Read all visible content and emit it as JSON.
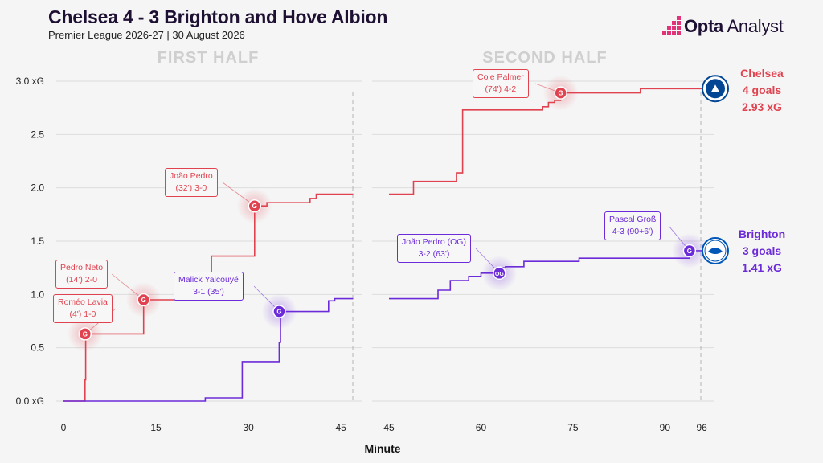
{
  "header": {
    "title": "Chelsea 4 - 3 Brighton and Hove Albion",
    "subtitle": "Premier League 2026-27 | 30 August 2026",
    "brand_bold": "Opta",
    "brand_rest": " Analyst"
  },
  "chart_data": {
    "type": "line",
    "xlabel": "Minute",
    "ylim": [
      0,
      3.0
    ],
    "y_ticks": [
      "0.0 xG",
      "0.5",
      "1.0",
      "1.5",
      "2.0",
      "2.5",
      "3.0 xG"
    ],
    "grid": true,
    "panels": [
      {
        "label": "FIRST HALF",
        "x_ticks": [
          "0",
          "15",
          "30",
          "45"
        ],
        "xlim": [
          0,
          47
        ]
      },
      {
        "label": "SECOND HALF",
        "x_ticks": [
          "45",
          "60",
          "75",
          "90",
          "96"
        ],
        "xlim": [
          45,
          96
        ]
      }
    ],
    "series": [
      {
        "name": "Chelsea",
        "color": "#e0434f",
        "summary": [
          "Chelsea",
          "4 goals",
          "2.93 xG"
        ],
        "first_half": [
          [
            0,
            0
          ],
          [
            3.5,
            0
          ],
          [
            3.5,
            0.2
          ],
          [
            3.6,
            0.2
          ],
          [
            3.6,
            0.63
          ],
          [
            13,
            0.63
          ],
          [
            13,
            0.95
          ],
          [
            24,
            0.95
          ],
          [
            24,
            1.36
          ],
          [
            31,
            1.36
          ],
          [
            31,
            1.83
          ],
          [
            33,
            1.83
          ],
          [
            33,
            1.86
          ],
          [
            40,
            1.86
          ],
          [
            40,
            1.9
          ],
          [
            41,
            1.9
          ],
          [
            41,
            1.94
          ],
          [
            47,
            1.94
          ]
        ],
        "second_half": [
          [
            45,
            1.94
          ],
          [
            49,
            1.94
          ],
          [
            49,
            2.06
          ],
          [
            56,
            2.06
          ],
          [
            56,
            2.14
          ],
          [
            57,
            2.14
          ],
          [
            57,
            2.73
          ],
          [
            70,
            2.73
          ],
          [
            70,
            2.76
          ],
          [
            71,
            2.76
          ],
          [
            71,
            2.8
          ],
          [
            72,
            2.8
          ],
          [
            72,
            2.82
          ],
          [
            73,
            2.82
          ],
          [
            73,
            2.89
          ],
          [
            86,
            2.89
          ],
          [
            86,
            2.93
          ],
          [
            96,
            2.93
          ]
        ]
      },
      {
        "name": "Brighton",
        "color": "#6c2bd9",
        "summary": [
          "Brighton",
          "3 goals",
          "1.41 xG"
        ],
        "first_half": [
          [
            0,
            0
          ],
          [
            23,
            0
          ],
          [
            23,
            0.03
          ],
          [
            29,
            0.03
          ],
          [
            29,
            0.37
          ],
          [
            35,
            0.37
          ],
          [
            35,
            0.55
          ],
          [
            35.2,
            0.55
          ],
          [
            35.2,
            0.84
          ],
          [
            43,
            0.84
          ],
          [
            43,
            0.94
          ],
          [
            44,
            0.94
          ],
          [
            44,
            0.96
          ],
          [
            47,
            0.96
          ]
        ],
        "second_half": [
          [
            45,
            0.96
          ],
          [
            53,
            0.96
          ],
          [
            53,
            1.04
          ],
          [
            55,
            1.04
          ],
          [
            55,
            1.13
          ],
          [
            58,
            1.13
          ],
          [
            58,
            1.17
          ],
          [
            60,
            1.17
          ],
          [
            60,
            1.2
          ],
          [
            63,
            1.2
          ],
          [
            63,
            1.25
          ],
          [
            64,
            1.25
          ],
          [
            64,
            1.26
          ],
          [
            67,
            1.26
          ],
          [
            67,
            1.31
          ],
          [
            76,
            1.31
          ],
          [
            76,
            1.34
          ],
          [
            94,
            1.34
          ],
          [
            94,
            1.41
          ],
          [
            96,
            1.41
          ]
        ]
      }
    ],
    "goals": [
      {
        "team": "Chelsea",
        "panel": 0,
        "minute": 3.5,
        "y": 0.63,
        "marker": "G",
        "label": [
          "Roméo Lavia",
          "(4') 1-0"
        ]
      },
      {
        "team": "Chelsea",
        "panel": 0,
        "minute": 13,
        "y": 0.95,
        "marker": "G",
        "label": [
          "Pedro Neto",
          "(14') 2-0"
        ]
      },
      {
        "team": "Chelsea",
        "panel": 0,
        "minute": 31,
        "y": 1.83,
        "marker": "G",
        "label": [
          "João Pedro",
          "(32') 3-0"
        ]
      },
      {
        "team": "Brighton",
        "panel": 0,
        "minute": 35,
        "y": 0.84,
        "marker": "G",
        "label": [
          "Malick Yalcouyé",
          "3-1 (35')"
        ]
      },
      {
        "team": "Brighton",
        "panel": 1,
        "minute": 63,
        "y": 1.2,
        "marker": "OG",
        "label": [
          "João Pedro (OG)",
          "3-2 (63')"
        ]
      },
      {
        "team": "Chelsea",
        "panel": 1,
        "minute": 73,
        "y": 2.89,
        "marker": "G",
        "label": [
          "Cole Palmer",
          "(74') 4-2"
        ]
      },
      {
        "team": "Brighton",
        "panel": 1,
        "minute": 94,
        "y": 1.41,
        "marker": "G",
        "label": [
          "Pascal Groß",
          "4-3 (90+6')"
        ]
      }
    ]
  }
}
